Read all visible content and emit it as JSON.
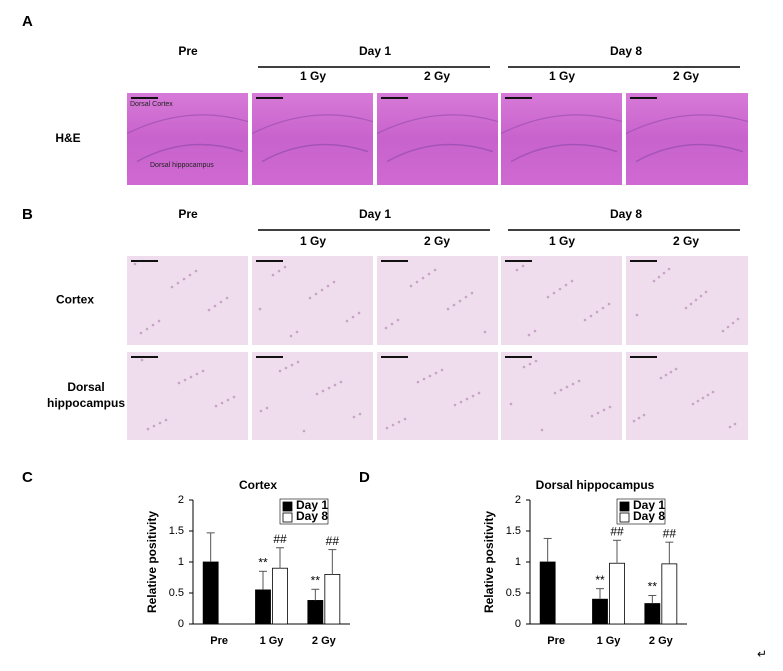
{
  "panels": [
    {
      "label": "A",
      "headers": [
        "Pre",
        "Day 1",
        "Day 8"
      ],
      "subheaders": [
        "1 Gy",
        "2 Gy",
        "1 Gy",
        "2 Gy"
      ],
      "rows": [
        "H&E"
      ],
      "image_labels": [
        "Dorsal Cortex",
        "Dorsal hippocampus"
      ]
    },
    {
      "label": "B",
      "headers": [
        "Pre",
        "Day 1",
        "Day 8"
      ],
      "subheaders": [
        "1 Gy",
        "2 Gy",
        "1 Gy",
        "2 Gy"
      ],
      "rows": [
        "Cortex",
        "Dorsal hippocampus"
      ]
    }
  ],
  "chart_data": [
    {
      "type": "bar",
      "panel_label": "C",
      "title": "Cortex",
      "ylabel": "Relative positivity",
      "categories": [
        "Pre",
        "1 Gy",
        "2 Gy"
      ],
      "series": [
        {
          "name": "Day 1",
          "color": "#000000",
          "values": [
            1,
            0.55,
            0.38
          ],
          "errors": [
            0.47,
            0.3,
            0.18
          ],
          "annotations": [
            null,
            "**",
            "**"
          ]
        },
        {
          "name": "Day 8",
          "color": "#ffffff",
          "values": [
            null,
            0.9,
            0.8
          ],
          "errors": [
            null,
            0.33,
            0.4
          ],
          "annotations": [
            null,
            "##",
            "##"
          ]
        }
      ],
      "ylim": [
        0,
        2
      ],
      "yticks": [
        0,
        0.5,
        1,
        1.5,
        2
      ]
    },
    {
      "type": "bar",
      "panel_label": "D",
      "title": "Dorsal hippocampus",
      "ylabel": "Relative positivity",
      "categories": [
        "Pre",
        "1 Gy",
        "2 Gy"
      ],
      "series": [
        {
          "name": "Day 1",
          "color": "#000000",
          "values": [
            1,
            0.4,
            0.33
          ],
          "errors": [
            0.38,
            0.17,
            0.13
          ],
          "annotations": [
            null,
            "**",
            "**"
          ]
        },
        {
          "name": "Day 8",
          "color": "#ffffff",
          "values": [
            null,
            0.98,
            0.97
          ],
          "errors": [
            null,
            0.37,
            0.35
          ],
          "annotations": [
            null,
            "##",
            "##"
          ]
        }
      ],
      "ylim": [
        0,
        2
      ],
      "yticks": [
        0,
        0.5,
        1,
        1.5,
        2
      ]
    }
  ],
  "return_mark": "↵"
}
